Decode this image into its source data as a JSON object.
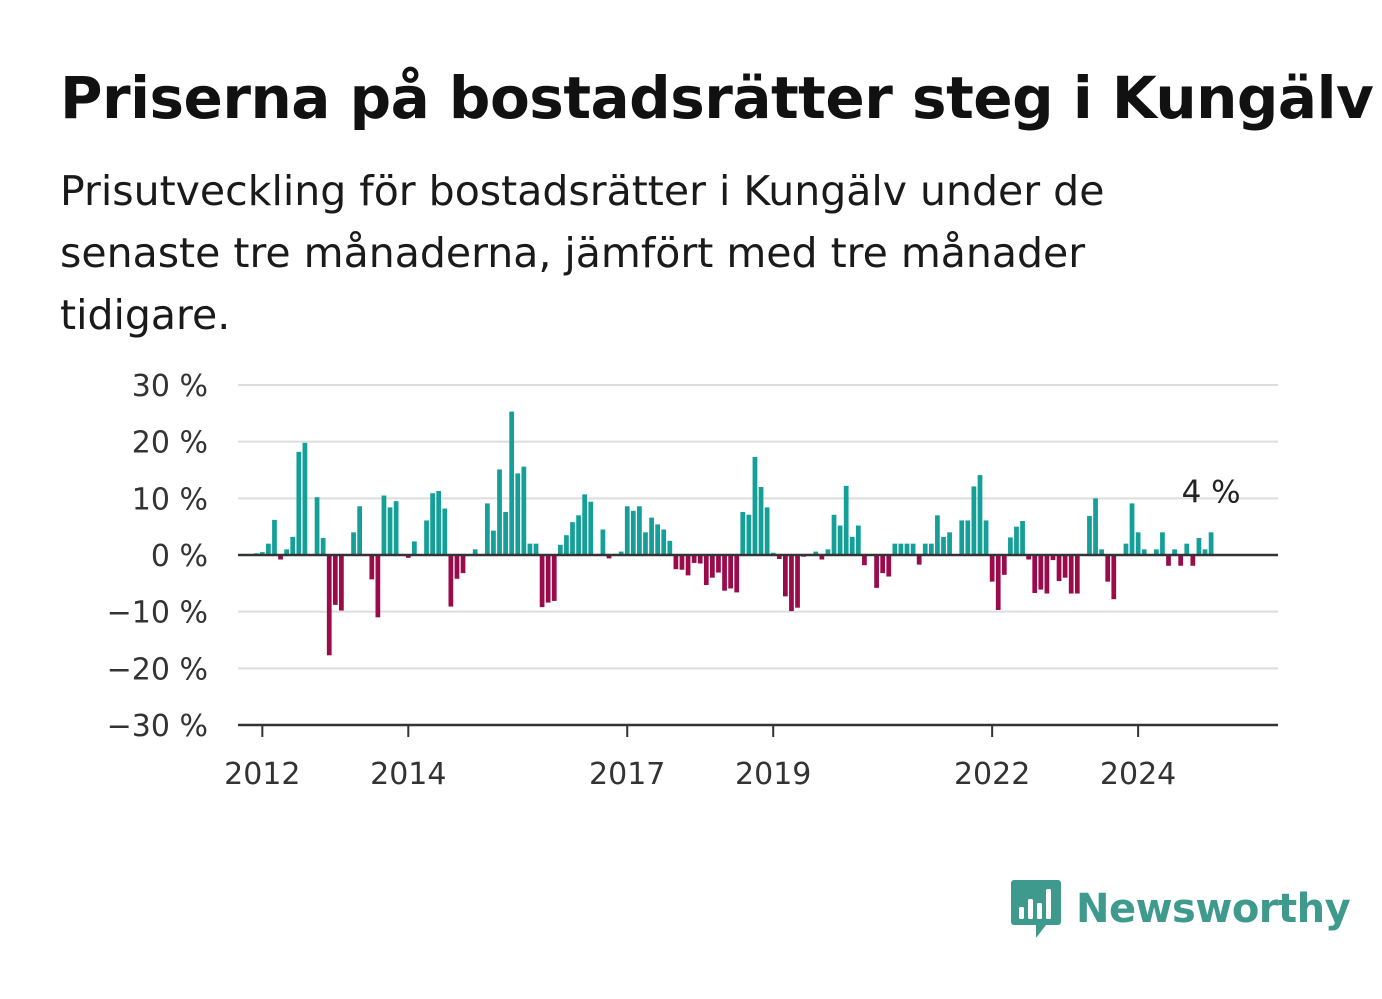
{
  "header": {
    "title": "Priserna på bostadsrätter steg i Kungälv",
    "subtitle": "Prisutveckling för bostadsrätter i Kungälv under de senaste tre månaderna, jämfört med tre månader tidigare."
  },
  "brand": {
    "name": "Newsworthy",
    "icon": "newsworthy-logo-icon",
    "color": "#3f9a8e"
  },
  "colors": {
    "positive": "#14a098",
    "negative": "#9b0b4b",
    "grid": "#dddddd",
    "zero": "#333333"
  },
  "chart_data": {
    "type": "bar",
    "title": "Priserna på bostadsrätter steg i Kungälv",
    "xlabel": "",
    "ylabel": "",
    "ylim": [
      -30,
      30
    ],
    "yticks": [
      30,
      20,
      10,
      0,
      -10,
      -20,
      -30
    ],
    "ytick_labels": [
      "30 %",
      "20 %",
      "10 %",
      "0 %",
      "−10 %",
      "−20 %",
      "−30 %"
    ],
    "xticks": [
      2012,
      2014,
      2017,
      2019,
      2022,
      2024
    ],
    "grid": true,
    "x_start": "2011-09",
    "x_end": "2025-12",
    "start": "2011-12",
    "interval": "month",
    "last_value_label": "4 %",
    "values": [
      0.3,
      0.5,
      2.0,
      6.2,
      -0.8,
      1.0,
      3.2,
      18.2,
      19.8,
      0.0,
      10.2,
      3.0,
      -17.7,
      -8.8,
      -9.8,
      0.0,
      4.0,
      8.6,
      0.0,
      -4.3,
      -11.0,
      10.5,
      8.4,
      9.5,
      0.0,
      -0.5,
      2.4,
      0.0,
      6.1,
      10.9,
      11.3,
      8.2,
      -9.1,
      -4.2,
      -3.2,
      0.0,
      1.0,
      0.0,
      9.1,
      4.3,
      15.1,
      7.6,
      25.3,
      14.4,
      15.6,
      2.0,
      2.0,
      -9.2,
      -8.4,
      -8.1,
      1.8,
      3.5,
      5.8,
      7.0,
      10.7,
      9.4,
      0.0,
      4.5,
      -0.6,
      0.2,
      0.6,
      8.6,
      7.8,
      8.6,
      4.0,
      6.6,
      5.4,
      4.5,
      2.5,
      -2.5,
      -2.6,
      -3.6,
      -1.4,
      -1.5,
      -5.3,
      -4.0,
      -3.1,
      -6.3,
      -5.9,
      -6.6,
      7.6,
      7.1,
      17.3,
      12.0,
      8.4,
      0.4,
      -0.7,
      -7.3,
      -9.9,
      -9.3,
      -0.3,
      0.2,
      0.6,
      -0.8,
      1.0,
      7.1,
      5.2,
      12.2,
      3.2,
      5.2,
      -1.8,
      0.0,
      -5.8,
      -3.2,
      -3.8,
      2.0,
      2.0,
      2.0,
      2.0,
      -1.7,
      2.0,
      2.0,
      7.0,
      3.2,
      4.0,
      0.0,
      6.1,
      6.1,
      12.1,
      14.1,
      6.1,
      -4.7,
      -9.7,
      -3.5,
      3.1,
      5.0,
      6.0,
      -0.8,
      -6.7,
      -6.1,
      -6.8,
      -0.9,
      -4.6,
      -4.0,
      -6.8,
      -6.8,
      0.0,
      6.9,
      10.0,
      1.0,
      -4.7,
      -7.8,
      0.0,
      2.0,
      9.1,
      4.0,
      1.0,
      0.0,
      1.0,
      4.0,
      -1.9,
      1.0,
      -1.9,
      2.0,
      -1.9,
      3.0,
      1.0,
      4.0
    ]
  }
}
